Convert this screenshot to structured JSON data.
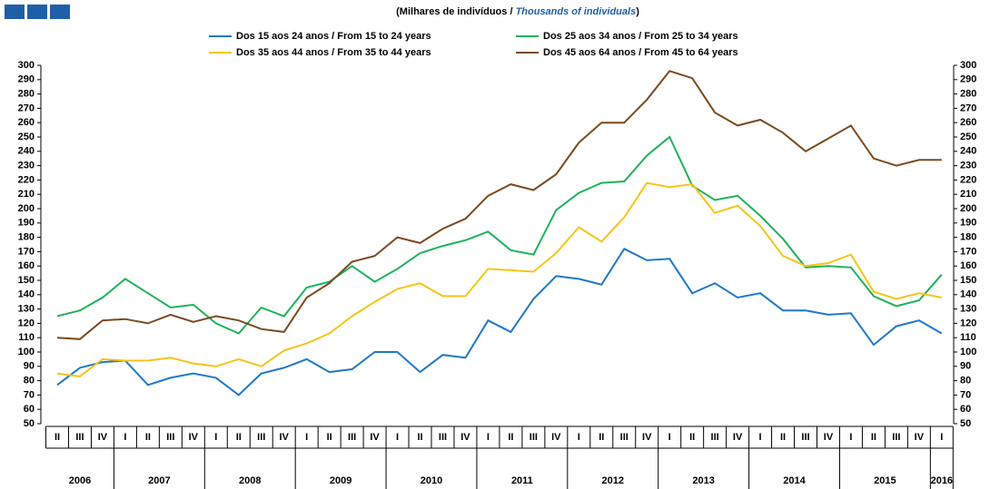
{
  "chart_data": {
    "type": "line",
    "subtitle_parts": [
      "(Milhares de indivíduos  / ",
      "Thousands of individuals",
      ")"
    ],
    "categories": [
      "II",
      "III",
      "IV",
      "I",
      "II",
      "III",
      "IV",
      "I",
      "II",
      "III",
      "IV",
      "I",
      "II",
      "III",
      "IV",
      "I",
      "II",
      "III",
      "IV",
      "I",
      "II",
      "III",
      "IV",
      "I",
      "II",
      "III",
      "IV",
      "I",
      "II",
      "III",
      "IV",
      "I",
      "II",
      "III",
      "IV",
      "I",
      "II",
      "III",
      "IV",
      "I"
    ],
    "years": [
      "2006",
      "2007",
      "2008",
      "2009",
      "2010",
      "2011",
      "2012",
      "2013",
      "2014",
      "2015",
      "2016"
    ],
    "ylim": [
      50,
      300
    ],
    "yticks": [
      50,
      60,
      70,
      80,
      90,
      100,
      110,
      120,
      130,
      140,
      150,
      160,
      170,
      180,
      190,
      200,
      210,
      220,
      230,
      240,
      250,
      260,
      270,
      280,
      290,
      300
    ],
    "series": [
      {
        "name": "Dos 15 aos 24 anos / From 15 to 24 years",
        "color": "#1f78c8",
        "values": [
          77,
          89,
          93,
          94,
          77,
          82,
          85,
          82,
          70,
          85,
          89,
          95,
          86,
          88,
          100,
          100,
          86,
          98,
          96,
          122,
          114,
          137,
          153,
          151,
          147,
          172,
          164,
          165,
          141,
          148,
          138,
          141,
          129,
          129,
          126,
          127,
          105,
          118,
          122,
          113
        ]
      },
      {
        "name": "Dos 25 aos 34 anos / From 25 to 34 years",
        "color": "#1db35a",
        "values": [
          125,
          129,
          138,
          151,
          141,
          131,
          133,
          120,
          113,
          131,
          125,
          145,
          149,
          160,
          149,
          158,
          169,
          174,
          178,
          184,
          171,
          168,
          199,
          211,
          218,
          219,
          237,
          250,
          216,
          206,
          209,
          195,
          179,
          159,
          160,
          159,
          139,
          132,
          136,
          154
        ]
      },
      {
        "name": "Dos 35 aos 44 anos / From 35 to 44 years",
        "color": "#f5c518",
        "values": [
          85,
          83,
          95,
          94,
          94,
          96,
          92,
          90,
          95,
          90,
          101,
          106,
          113,
          125,
          135,
          144,
          148,
          139,
          139,
          158,
          157,
          156,
          169,
          187,
          177,
          194,
          218,
          215,
          217,
          197,
          202,
          188,
          167,
          160,
          162,
          168,
          142,
          137,
          141,
          138
        ]
      },
      {
        "name": "Dos 45 aos 64 anos / From 45 to 64 years",
        "color": "#7b4a1e",
        "values": [
          110,
          109,
          122,
          123,
          120,
          126,
          121,
          125,
          122,
          116,
          114,
          138,
          148,
          163,
          167,
          180,
          176,
          186,
          193,
          209,
          217,
          213,
          224,
          246,
          260,
          260,
          276,
          296,
          291,
          267,
          258,
          262,
          253,
          240,
          249,
          258,
          235,
          230,
          234,
          234
        ]
      }
    ]
  }
}
